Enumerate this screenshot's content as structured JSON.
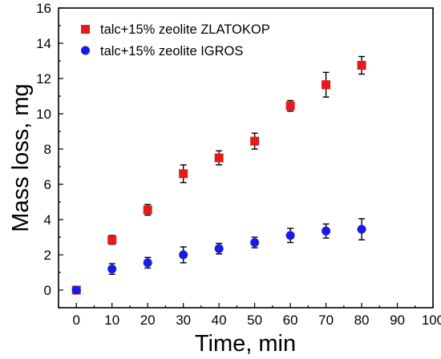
{
  "chart_data": {
    "type": "scatter",
    "xlabel": "Time, min",
    "ylabel": "Mass loss, mg",
    "xlim": [
      -5,
      100
    ],
    "ylim": [
      -1,
      16
    ],
    "xticks": [
      0,
      10,
      20,
      30,
      40,
      50,
      60,
      70,
      80,
      90,
      100
    ],
    "yticks": [
      0,
      2,
      4,
      6,
      8,
      10,
      12,
      14,
      16
    ],
    "grid": false,
    "legend": "top-left",
    "series": [
      {
        "name": "talc+15% zeolite ZLATOKOP",
        "marker": "square",
        "color": "#e8191c",
        "x": [
          0,
          10,
          20,
          30,
          40,
          50,
          60,
          70,
          80
        ],
        "y": [
          0.0,
          2.85,
          4.55,
          6.6,
          7.5,
          8.45,
          10.45,
          11.65,
          12.75
        ],
        "err": [
          0.1,
          0.25,
          0.3,
          0.5,
          0.4,
          0.45,
          0.3,
          0.7,
          0.5
        ]
      },
      {
        "name": "talc+15% zeolite IGROS",
        "marker": "circle",
        "color": "#1a1ae6",
        "x": [
          0,
          10,
          20,
          30,
          40,
          50,
          60,
          70,
          80
        ],
        "y": [
          0.0,
          1.2,
          1.55,
          2.0,
          2.35,
          2.7,
          3.1,
          3.35,
          3.45
        ],
        "err": [
          0.1,
          0.3,
          0.3,
          0.45,
          0.3,
          0.3,
          0.4,
          0.4,
          0.6
        ]
      }
    ]
  }
}
